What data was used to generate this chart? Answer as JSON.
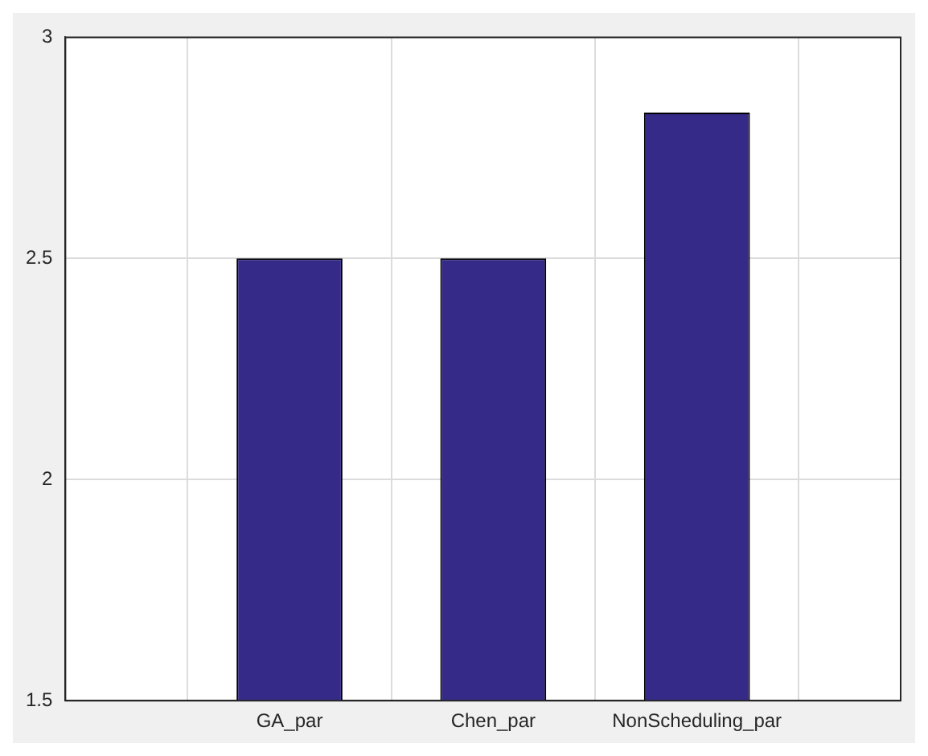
{
  "chart_data": {
    "type": "bar",
    "categories": [
      "GA_par",
      "Chen_par",
      "NonScheduling_par"
    ],
    "values": [
      2.5,
      2.5,
      2.83
    ],
    "color": "#352a87",
    "ylim": [
      1.5,
      3
    ],
    "yticks": [
      1.5,
      2,
      2.5,
      3
    ],
    "grid": true
  }
}
